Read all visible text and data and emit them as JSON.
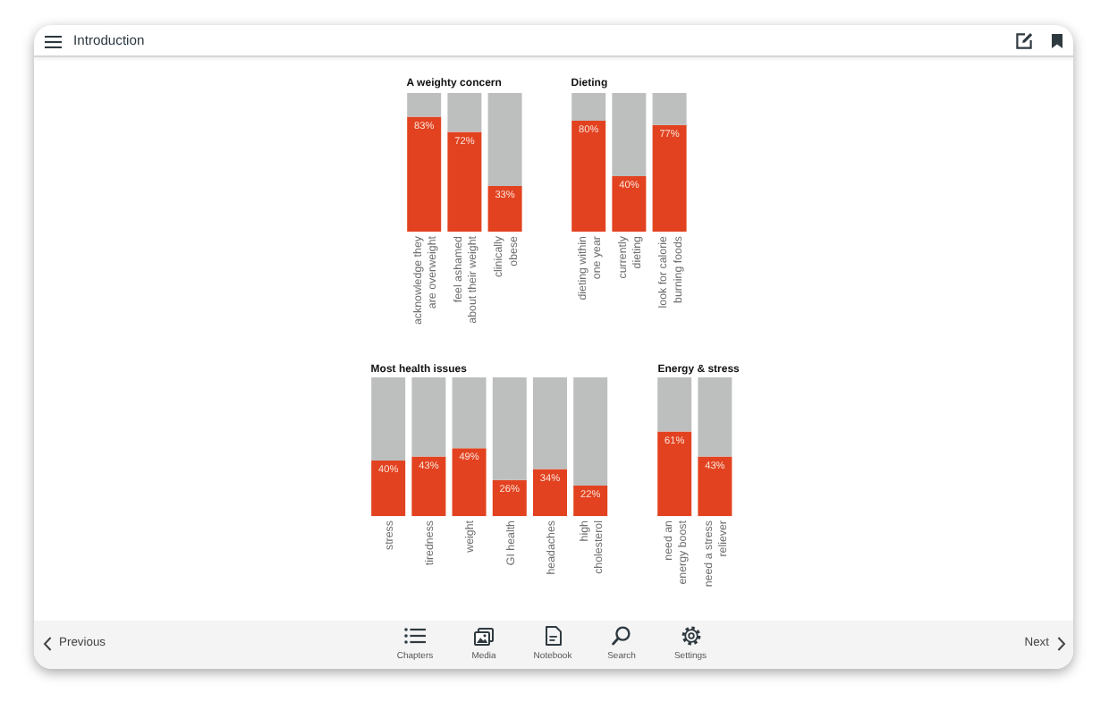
{
  "chart_data": [
    {
      "type": "other",
      "title": "Introduction",
      "annotations": [
        "Previous",
        "Chapters",
        "Media",
        "Notebook",
        "Search",
        "Settings",
        "Next"
      ]
    },
    {
      "type": "bar",
      "title": "A weighty concern",
      "categories": [
        "acknowledge they are overweight",
        "feel ashamed about their weight",
        "clinically obese"
      ],
      "stacked": true,
      "ylim": [
        0,
        100
      ],
      "tick_labels": "x",
      "series": [
        {
          "color": "#e2421f",
          "values": [
            83,
            72,
            33
          ],
          "value_labels": [
            "83%",
            "72%",
            "33%"
          ]
        },
        {
          "color": "#bdbfbf",
          "values": [
            17,
            28,
            67
          ]
        }
      ]
    },
    {
      "type": "bar",
      "title": "Dieting",
      "categories": [
        "dieting within one year",
        "currently dieting",
        "look for calorie burning foods"
      ],
      "stacked": true,
      "ylim": [
        0,
        100
      ],
      "tick_labels": "x",
      "series": [
        {
          "color": "#e2421f",
          "values": [
            80,
            40,
            77
          ],
          "value_labels": [
            "80%",
            "40%",
            "77%"
          ]
        },
        {
          "color": "#bdbfbf",
          "values": [
            20,
            60,
            23
          ]
        }
      ]
    },
    {
      "type": "bar",
      "title": "Most health issues",
      "categories": [
        "stress",
        "tiredness",
        "weight",
        "GI health",
        "headaches",
        "high cholesterol"
      ],
      "stacked": true,
      "ylim": [
        0,
        100
      ],
      "tick_labels": "x",
      "series": [
        {
          "color": "#e2421f",
          "values": [
            40,
            43,
            49,
            26,
            34,
            22
          ],
          "value_labels": [
            "40%",
            "43%",
            "49%",
            "26%",
            "34%",
            "22%"
          ]
        },
        {
          "color": "#bdbfbf",
          "values": [
            60,
            57,
            51,
            74,
            66,
            78
          ]
        }
      ]
    },
    {
      "type": "bar",
      "title": "Energy & stress",
      "categories": [
        "need an energy boost",
        "need a stress reliever"
      ],
      "stacked": true,
      "ylim": [
        0,
        100
      ],
      "tick_labels": "x",
      "series": [
        {
          "color": "#e2421f",
          "values": [
            61,
            43
          ],
          "value_labels": [
            "61%",
            "43%"
          ]
        },
        {
          "color": "#bdbfbf",
          "values": [
            39,
            57
          ]
        }
      ]
    }
  ]
}
